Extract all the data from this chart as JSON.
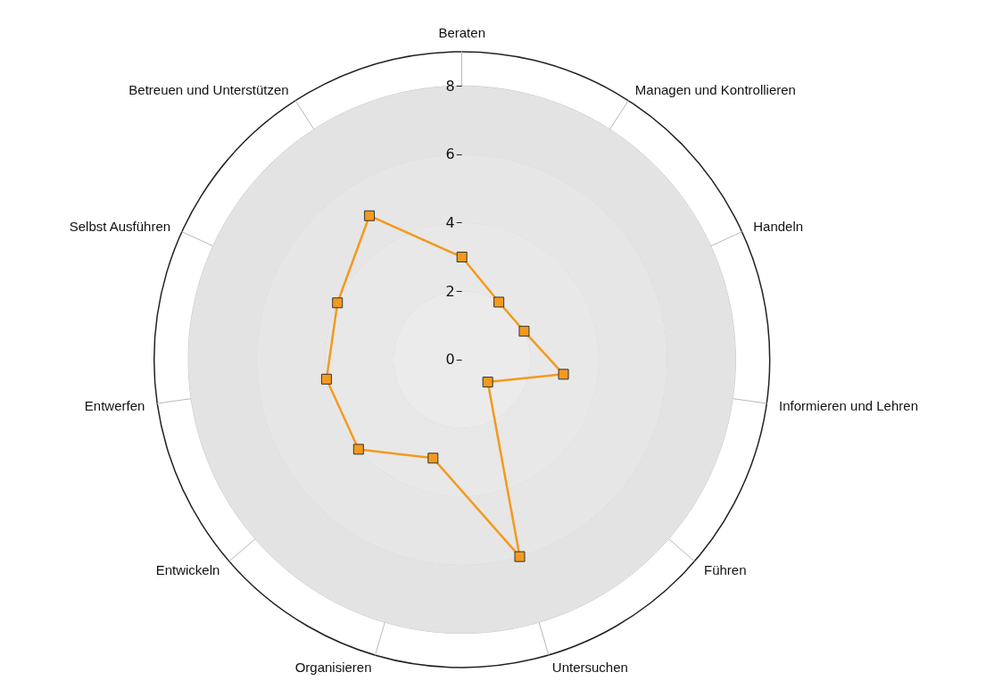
{
  "chart_data": {
    "type": "radar",
    "categories": [
      "Beraten",
      "Managen und Kontrollieren",
      "Handeln",
      "Informieren und Lehren",
      "Führen",
      "Untersuchen",
      "Organisieren",
      "Entwickeln",
      "Entwerfen",
      "Selbst Ausführen",
      "Betreuen und Unterstützen"
    ],
    "series": [
      {
        "color": "#f39a1e",
        "values": [
          3,
          2,
          2,
          3,
          1,
          6,
          3,
          4,
          4,
          4,
          5
        ]
      }
    ],
    "ylim": [
      0,
      9
    ],
    "yticks": [
      0,
      2,
      4,
      6,
      8
    ],
    "grid": true,
    "marker": "square"
  }
}
